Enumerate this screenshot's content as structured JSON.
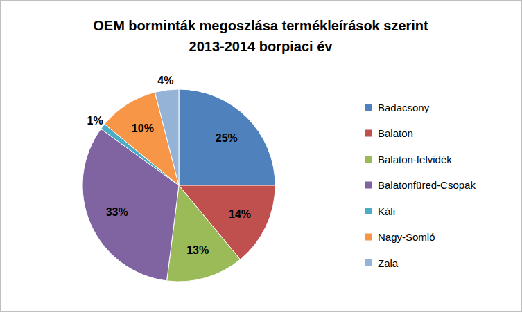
{
  "chart_data": {
    "type": "pie",
    "title": "OEM borminták megoszlása termékleírások szerint",
    "subtitle": "2013-2014 borpiaci év",
    "categories": [
      "Badacsony",
      "Balaton",
      "Balaton-felvidék",
      "Balatonfüred-Csopak",
      "Káli",
      "Nagy-Somló",
      "Zala"
    ],
    "values": [
      25,
      14,
      13,
      33,
      1,
      10,
      4
    ],
    "value_labels": [
      "25%",
      "14%",
      "13%",
      "33%",
      "1%",
      "10%",
      "4%"
    ],
    "colors": [
      "#4f81bd",
      "#c0504d",
      "#9bbb59",
      "#8064a2",
      "#4bacc6",
      "#f79646",
      "#95b3d7"
    ],
    "data_labels": true,
    "legend": "right"
  }
}
